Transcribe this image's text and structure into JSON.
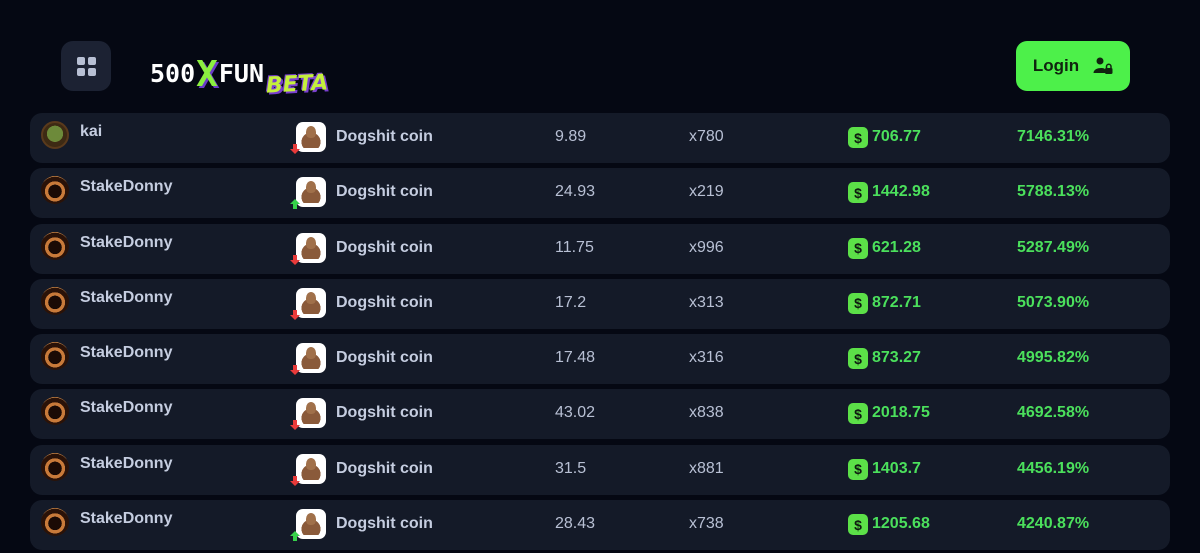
{
  "header": {
    "logo_main_left": "500",
    "logo_x": "X",
    "logo_main_right": "FUN",
    "logo_beta": "BETA",
    "login_label": "Login"
  },
  "rows": [
    {
      "user": "kai",
      "avatar": "frog-avatar",
      "coin": "Dogshit coin",
      "trend": "down",
      "amount": "9.89",
      "multiplier": "x780",
      "payout": "706.77",
      "percent": "7146.31%"
    },
    {
      "user": "StakeDonny",
      "avatar": "fire-avatar",
      "coin": "Dogshit coin",
      "trend": "up",
      "amount": "24.93",
      "multiplier": "x219",
      "payout": "1442.98",
      "percent": "5788.13%"
    },
    {
      "user": "StakeDonny",
      "avatar": "fire-avatar",
      "coin": "Dogshit coin",
      "trend": "down",
      "amount": "11.75",
      "multiplier": "x996",
      "payout": "621.28",
      "percent": "5287.49%"
    },
    {
      "user": "StakeDonny",
      "avatar": "fire-avatar",
      "coin": "Dogshit coin",
      "trend": "down",
      "amount": "17.2",
      "multiplier": "x313",
      "payout": "872.71",
      "percent": "5073.90%"
    },
    {
      "user": "StakeDonny",
      "avatar": "fire-avatar",
      "coin": "Dogshit coin",
      "trend": "down",
      "amount": "17.48",
      "multiplier": "x316",
      "payout": "873.27",
      "percent": "4995.82%"
    },
    {
      "user": "StakeDonny",
      "avatar": "fire-avatar",
      "coin": "Dogshit coin",
      "trend": "down",
      "amount": "43.02",
      "multiplier": "x838",
      "payout": "2018.75",
      "percent": "4692.58%"
    },
    {
      "user": "StakeDonny",
      "avatar": "fire-avatar",
      "coin": "Dogshit coin",
      "trend": "down",
      "amount": "31.5",
      "multiplier": "x881",
      "payout": "1403.7",
      "percent": "4456.19%"
    },
    {
      "user": "StakeDonny",
      "avatar": "fire-avatar",
      "coin": "Dogshit coin",
      "trend": "up",
      "amount": "28.43",
      "multiplier": "x738",
      "payout": "1205.68",
      "percent": "4240.87%"
    }
  ],
  "dollar_symbol": "$",
  "colors": {
    "background": "#050813",
    "row_bg": "#141a28",
    "accent_green": "#4be05c",
    "login_green": "#4df04a",
    "trend_down": "#e83a3a",
    "trend_up": "#36d14a"
  }
}
